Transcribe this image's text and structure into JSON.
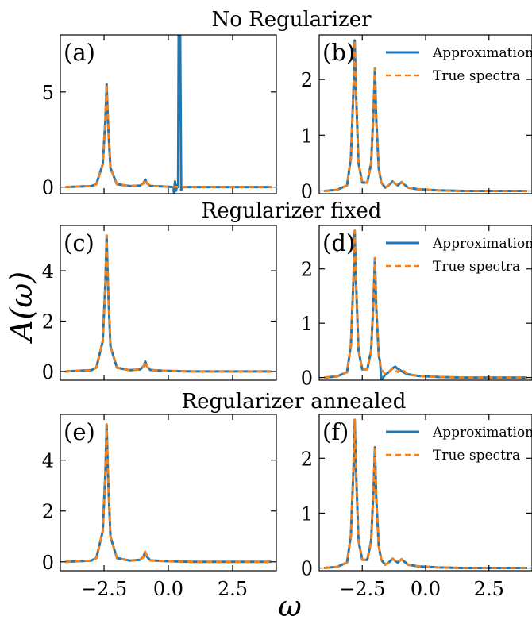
{
  "figure": {
    "ylabel": "A(ω)",
    "xlabel": "ω",
    "row_titles": [
      "No Regularizer",
      "Regularizer fixed",
      "Regularizer annealed"
    ],
    "colors": {
      "approximation": "#1f77b4",
      "true_spectra": "#ff7f0e",
      "axes": "#000000"
    }
  },
  "chart_data": [
    {
      "type": "line",
      "panel": "(a)",
      "row_title": "No Regularizer",
      "xlim": [
        -4.2,
        4.2
      ],
      "ylim": [
        -0.35,
        8.0
      ],
      "xticks": [
        -2.5,
        0.0,
        2.5
      ],
      "yticks": [
        0,
        5
      ],
      "ytick_labels": [
        "0",
        "5"
      ],
      "legend": false,
      "series": [
        {
          "role": "approx",
          "x": [
            -4.0,
            -3.0,
            -2.8,
            -2.55,
            -2.45,
            -2.4,
            -2.35,
            -2.25,
            -2.0,
            -1.5,
            -1.1,
            -0.97,
            -0.9,
            -0.83,
            -0.7,
            -0.2,
            0.2,
            0.22,
            0.26,
            0.3,
            0.34,
            0.38,
            0.4,
            0.42,
            0.44,
            0.46,
            0.5,
            0.55,
            0.6,
            1.0,
            2.0,
            3.0,
            4.0
          ],
          "y": [
            0.0,
            0.05,
            0.15,
            1.2,
            3.5,
            5.4,
            3.5,
            1.0,
            0.15,
            0.05,
            0.08,
            0.2,
            0.4,
            0.2,
            0.06,
            0.03,
            0.0,
            -0.3,
            0.3,
            -0.2,
            0.1,
            0.0,
            8.0,
            8.0,
            8.0,
            8.0,
            -0.15,
            0.0,
            0.0,
            0.0,
            0.0,
            0.0,
            0.0
          ]
        },
        {
          "role": "true",
          "x": [
            -4.0,
            -3.0,
            -2.8,
            -2.55,
            -2.45,
            -2.4,
            -2.35,
            -2.25,
            -2.0,
            -1.5,
            -1.1,
            -0.97,
            -0.9,
            -0.83,
            -0.7,
            -0.2,
            0.5,
            1.0,
            2.0,
            3.0,
            4.0
          ],
          "y": [
            0.0,
            0.05,
            0.15,
            1.2,
            3.5,
            5.4,
            3.5,
            1.0,
            0.15,
            0.05,
            0.08,
            0.2,
            0.4,
            0.2,
            0.06,
            0.03,
            0.01,
            0.0,
            0.0,
            0.0,
            0.0
          ]
        }
      ]
    },
    {
      "type": "line",
      "panel": "(b)",
      "xlim": [
        -4.2,
        4.2
      ],
      "ylim": [
        -0.05,
        2.8
      ],
      "xticks": [
        -2.5,
        0.0,
        2.5
      ],
      "yticks": [
        0,
        1,
        2
      ],
      "ytick_labels": [
        "0",
        "1",
        "2"
      ],
      "legend": true,
      "series": [
        {
          "name": "Approximation",
          "role": "approx",
          "x": [
            -4.0,
            -3.5,
            -3.1,
            -2.95,
            -2.85,
            -2.8,
            -2.75,
            -2.65,
            -2.5,
            -2.3,
            -2.15,
            -2.05,
            -2.0,
            -1.95,
            -1.85,
            -1.75,
            -1.6,
            -1.45,
            -1.3,
            -1.2,
            -1.1,
            -0.95,
            -0.85,
            -0.7,
            -0.3,
            0.5,
            1.5,
            2.5,
            4.0
          ],
          "y": [
            0.0,
            0.02,
            0.1,
            0.6,
            1.8,
            2.7,
            1.8,
            0.5,
            0.15,
            0.15,
            0.5,
            1.5,
            2.2,
            1.3,
            0.4,
            0.15,
            0.06,
            0.1,
            0.17,
            0.13,
            0.1,
            0.16,
            0.12,
            0.06,
            0.03,
            0.01,
            0.0,
            0.0,
            0.0
          ]
        },
        {
          "name": "True spectra",
          "role": "true",
          "x": [
            -4.0,
            -3.5,
            -3.1,
            -2.95,
            -2.85,
            -2.8,
            -2.75,
            -2.65,
            -2.5,
            -2.3,
            -2.15,
            -2.05,
            -2.0,
            -1.95,
            -1.85,
            -1.75,
            -1.6,
            -1.45,
            -1.3,
            -1.2,
            -1.1,
            -0.95,
            -0.85,
            -0.7,
            -0.3,
            0.5,
            1.5,
            2.5,
            4.0
          ],
          "y": [
            0.0,
            0.02,
            0.1,
            0.6,
            1.8,
            2.7,
            1.8,
            0.5,
            0.15,
            0.15,
            0.5,
            1.5,
            2.2,
            1.3,
            0.4,
            0.15,
            0.06,
            0.1,
            0.17,
            0.13,
            0.1,
            0.16,
            0.12,
            0.06,
            0.03,
            0.01,
            0.0,
            0.0,
            0.0
          ]
        }
      ]
    },
    {
      "type": "line",
      "panel": "(c)",
      "row_title": "Regularizer fixed",
      "xlim": [
        -4.2,
        4.2
      ],
      "ylim": [
        -0.35,
        5.8
      ],
      "xticks": [
        -2.5,
        0.0,
        2.5
      ],
      "yticks": [
        0,
        2,
        4
      ],
      "ytick_labels": [
        "0",
        "2",
        "4"
      ],
      "legend": false,
      "series": [
        {
          "role": "approx",
          "x": [
            -4.0,
            -3.0,
            -2.8,
            -2.55,
            -2.45,
            -2.4,
            -2.35,
            -2.25,
            -2.0,
            -1.5,
            -1.1,
            -0.97,
            -0.9,
            -0.83,
            -0.7,
            -0.2,
            0.5,
            1.0,
            2.0,
            3.0,
            4.0
          ],
          "y": [
            0.0,
            0.05,
            0.15,
            1.2,
            3.5,
            5.4,
            3.5,
            1.0,
            0.15,
            0.05,
            0.08,
            0.2,
            0.4,
            0.2,
            0.06,
            0.03,
            0.01,
            0.0,
            0.0,
            0.0,
            0.0
          ]
        },
        {
          "role": "true",
          "x": [
            -4.0,
            -3.0,
            -2.8,
            -2.55,
            -2.45,
            -2.4,
            -2.35,
            -2.25,
            -2.0,
            -1.5,
            -1.1,
            -0.97,
            -0.9,
            -0.83,
            -0.7,
            -0.2,
            0.5,
            1.0,
            2.0,
            3.0,
            4.0
          ],
          "y": [
            0.0,
            0.05,
            0.15,
            1.2,
            3.5,
            5.4,
            3.5,
            1.0,
            0.15,
            0.05,
            0.08,
            0.2,
            0.4,
            0.2,
            0.06,
            0.03,
            0.01,
            0.0,
            0.0,
            0.0,
            0.0
          ]
        }
      ]
    },
    {
      "type": "line",
      "panel": "(d)",
      "xlim": [
        -4.2,
        4.2
      ],
      "ylim": [
        -0.05,
        2.8
      ],
      "xticks": [
        -2.5,
        0.0,
        2.5
      ],
      "yticks": [
        0,
        1,
        2
      ],
      "ytick_labels": [
        "0",
        "1",
        "2"
      ],
      "legend": true,
      "series": [
        {
          "name": "Approximation",
          "role": "approx",
          "x": [
            -4.0,
            -3.5,
            -3.1,
            -2.95,
            -2.85,
            -2.8,
            -2.75,
            -2.65,
            -2.5,
            -2.3,
            -2.15,
            -2.05,
            -2.0,
            -1.95,
            -1.85,
            -1.8,
            -1.75,
            -1.6,
            -1.45,
            -1.3,
            -1.2,
            -1.1,
            -0.95,
            -0.85,
            -0.7,
            -0.3,
            0.5,
            1.5,
            2.5,
            4.0
          ],
          "y": [
            0.0,
            0.02,
            0.1,
            0.6,
            1.8,
            2.7,
            1.8,
            0.5,
            0.15,
            0.15,
            0.5,
            1.5,
            2.2,
            1.3,
            0.4,
            0.3,
            -0.05,
            0.05,
            0.1,
            0.17,
            0.2,
            0.16,
            0.12,
            0.09,
            0.06,
            0.03,
            0.01,
            0.0,
            0.0,
            0.0
          ]
        },
        {
          "name": "True spectra",
          "role": "true",
          "x": [
            -4.0,
            -3.5,
            -3.1,
            -2.95,
            -2.85,
            -2.8,
            -2.75,
            -2.65,
            -2.5,
            -2.3,
            -2.15,
            -2.05,
            -2.0,
            -1.95,
            -1.85,
            -1.75,
            -1.6,
            -1.45,
            -1.3,
            -1.2,
            -1.1,
            -0.95,
            -0.85,
            -0.7,
            -0.3,
            0.5,
            1.5,
            2.5,
            4.0
          ],
          "y": [
            0.0,
            0.02,
            0.1,
            0.6,
            1.8,
            2.7,
            1.8,
            0.5,
            0.15,
            0.15,
            0.5,
            1.5,
            2.2,
            1.3,
            0.4,
            0.15,
            0.06,
            0.1,
            0.17,
            0.13,
            0.1,
            0.16,
            0.12,
            0.06,
            0.03,
            0.01,
            0.0,
            0.0,
            0.0
          ]
        }
      ]
    },
    {
      "type": "line",
      "panel": "(e)",
      "row_title": "Regularizer annealed",
      "xlim": [
        -4.2,
        4.2
      ],
      "ylim": [
        -0.35,
        5.8
      ],
      "xticks": [
        -2.5,
        0.0,
        2.5
      ],
      "yticks": [
        0,
        2,
        4
      ],
      "ytick_labels": [
        "0",
        "2",
        "4"
      ],
      "legend": false,
      "series": [
        {
          "role": "approx",
          "x": [
            -4.0,
            -3.0,
            -2.8,
            -2.55,
            -2.45,
            -2.4,
            -2.35,
            -2.25,
            -2.0,
            -1.5,
            -1.1,
            -0.97,
            -0.9,
            -0.83,
            -0.7,
            -0.2,
            0.5,
            1.0,
            2.0,
            3.0,
            4.0
          ],
          "y": [
            0.0,
            0.05,
            0.15,
            1.2,
            3.5,
            5.4,
            3.5,
            1.0,
            0.15,
            0.05,
            0.08,
            0.2,
            0.4,
            0.2,
            0.06,
            0.03,
            0.01,
            0.0,
            0.0,
            0.0,
            0.0
          ]
        },
        {
          "role": "true",
          "x": [
            -4.0,
            -3.0,
            -2.8,
            -2.55,
            -2.45,
            -2.4,
            -2.35,
            -2.25,
            -2.0,
            -1.5,
            -1.1,
            -0.97,
            -0.9,
            -0.83,
            -0.7,
            -0.2,
            0.5,
            1.0,
            2.0,
            3.0,
            4.0
          ],
          "y": [
            0.0,
            0.05,
            0.15,
            1.2,
            3.5,
            5.4,
            3.5,
            1.0,
            0.15,
            0.05,
            0.08,
            0.2,
            0.4,
            0.2,
            0.06,
            0.03,
            0.01,
            0.0,
            0.0,
            0.0,
            0.0
          ]
        }
      ]
    },
    {
      "type": "line",
      "panel": "(f)",
      "xlim": [
        -4.2,
        4.2
      ],
      "ylim": [
        -0.05,
        2.8
      ],
      "xticks": [
        -2.5,
        0.0,
        2.5
      ],
      "yticks": [
        0,
        1,
        2
      ],
      "ytick_labels": [
        "0",
        "1",
        "2"
      ],
      "legend": true,
      "series": [
        {
          "name": "Approximation",
          "role": "approx",
          "x": [
            -4.0,
            -3.5,
            -3.1,
            -2.95,
            -2.85,
            -2.8,
            -2.75,
            -2.65,
            -2.5,
            -2.3,
            -2.15,
            -2.05,
            -2.0,
            -1.95,
            -1.85,
            -1.75,
            -1.6,
            -1.45,
            -1.3,
            -1.2,
            -1.1,
            -0.95,
            -0.85,
            -0.7,
            -0.3,
            0.5,
            1.5,
            2.5,
            4.0
          ],
          "y": [
            0.0,
            0.02,
            0.1,
            0.6,
            1.8,
            2.7,
            1.8,
            0.5,
            0.15,
            0.15,
            0.5,
            1.5,
            2.2,
            1.3,
            0.4,
            0.15,
            0.06,
            0.1,
            0.17,
            0.13,
            0.1,
            0.16,
            0.12,
            0.06,
            0.03,
            0.01,
            0.0,
            0.0,
            0.0
          ]
        },
        {
          "name": "True spectra",
          "role": "true",
          "x": [
            -4.0,
            -3.5,
            -3.1,
            -2.95,
            -2.85,
            -2.8,
            -2.75,
            -2.65,
            -2.5,
            -2.3,
            -2.15,
            -2.05,
            -2.0,
            -1.95,
            -1.85,
            -1.75,
            -1.6,
            -1.45,
            -1.3,
            -1.2,
            -1.1,
            -0.95,
            -0.85,
            -0.7,
            -0.3,
            0.5,
            1.5,
            2.5,
            4.0
          ],
          "y": [
            0.0,
            0.02,
            0.1,
            0.6,
            1.8,
            2.7,
            1.8,
            0.5,
            0.15,
            0.15,
            0.5,
            1.5,
            2.2,
            1.3,
            0.4,
            0.15,
            0.06,
            0.1,
            0.17,
            0.13,
            0.1,
            0.16,
            0.12,
            0.06,
            0.03,
            0.01,
            0.0,
            0.0,
            0.0
          ]
        }
      ]
    }
  ]
}
